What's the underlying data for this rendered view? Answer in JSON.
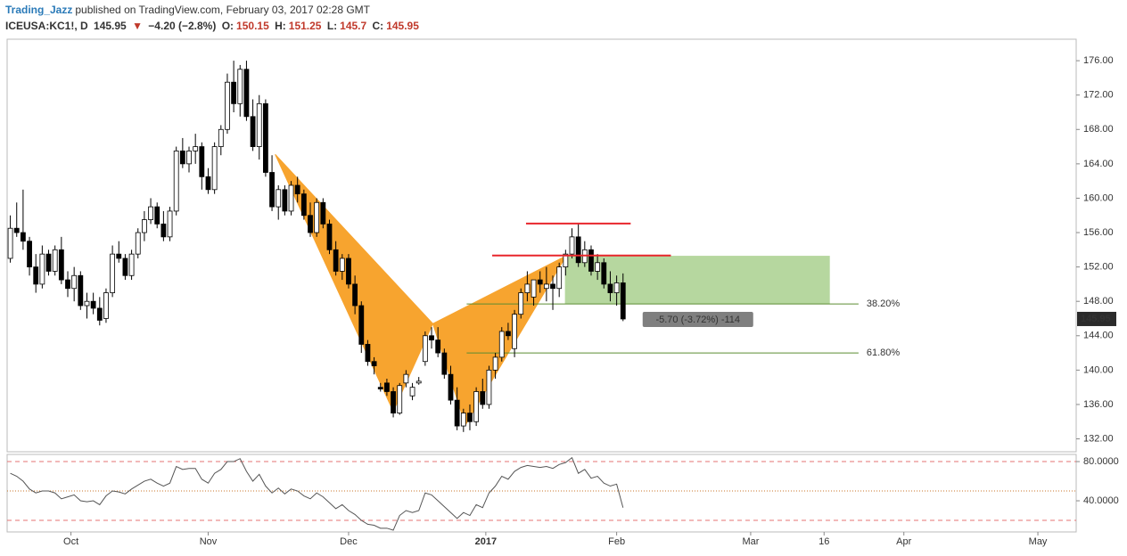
{
  "chart_data": {
    "type": "candlestick",
    "publisher": "Trading_Jazz",
    "published": "published on TradingView.com, February 03, 2017 02:28 GMT",
    "symbol": "ICEUSA:KC1!, D",
    "change_arrow": "▼",
    "change": "−4.20 (−2.8%)",
    "ohlc_labels": [
      "O:",
      "H:",
      "L:",
      "C:"
    ],
    "x": [
      0,
      1,
      2,
      3,
      4,
      5,
      6,
      7,
      8,
      9,
      10,
      11,
      12,
      13,
      14,
      15,
      16,
      17,
      18,
      19,
      20,
      21,
      22,
      23,
      24,
      25,
      26,
      27,
      28,
      29,
      30,
      31,
      32,
      33,
      34,
      35,
      36,
      37,
      38,
      39,
      40,
      41,
      42,
      43,
      44,
      45,
      46,
      47,
      48,
      49,
      50,
      51,
      52,
      53,
      54,
      55,
      56,
      57,
      58,
      59,
      60,
      61,
      62,
      63,
      64,
      65,
      66,
      67,
      68,
      69,
      70,
      71,
      72,
      73,
      74,
      75,
      76,
      77,
      78,
      79,
      80,
      81,
      82,
      83,
      84,
      85,
      86,
      87,
      88,
      89,
      90,
      91,
      92,
      93,
      94,
      95,
      96
    ],
    "open": [
      153.0,
      156.5,
      156.0,
      155.0,
      152.0,
      150.0,
      153.5,
      151.5,
      154.0,
      150.5,
      149.5,
      151.0,
      147.5,
      148.0,
      147.2,
      146.0,
      149.0,
      153.5,
      153.0,
      151.0,
      153.5,
      156.0,
      157.5,
      159.0,
      157.0,
      155.5,
      158.5,
      165.5,
      164.0,
      165.5,
      166.0,
      162.5,
      161.0,
      166.0,
      168.0,
      173.5,
      171.0,
      175.0,
      169.5,
      166.0,
      171.0,
      163.0,
      159.0,
      161.0,
      158.5,
      161.5,
      160.5,
      158.0,
      156.0,
      159.5,
      157.0,
      154.0,
      151.5,
      153.0,
      150.0,
      147.5,
      143.0,
      141.0,
      138.0,
      138.5,
      137.5,
      135.0,
      138.5,
      137.0,
      138.5,
      141.0,
      144.0,
      143.5,
      142.0,
      139.5,
      136.5,
      133.5,
      135.0,
      134.0,
      137.5,
      136.0,
      140.0,
      141.5,
      144.5,
      142.5,
      146.5,
      149.0,
      148.5,
      150.5,
      149.5,
      150.0,
      149.5,
      152.0,
      153.5,
      155.5,
      152.5,
      154.0,
      151.5,
      152.5,
      150.0,
      149.0,
      150.15
    ],
    "high": [
      158.0,
      159.5,
      161.0,
      155.5,
      153.5,
      154.5,
      154.0,
      154.5,
      155.5,
      151.5,
      152.0,
      151.5,
      149.0,
      149.0,
      148.5,
      149.5,
      154.5,
      155.0,
      153.5,
      154.0,
      156.5,
      158.5,
      160.0,
      159.5,
      158.5,
      159.0,
      166.0,
      167.0,
      166.0,
      167.5,
      166.5,
      163.5,
      166.5,
      168.5,
      174.5,
      176.0,
      175.5,
      176.0,
      171.5,
      172.0,
      171.5,
      165.0,
      161.5,
      161.5,
      162.0,
      162.5,
      161.0,
      159.5,
      160.0,
      160.0,
      157.5,
      155.0,
      153.5,
      153.5,
      151.0,
      148.0,
      143.5,
      141.5,
      138.5,
      139.0,
      138.0,
      138.5,
      140.0,
      138.5,
      139.2,
      144.5,
      145.0,
      145.0,
      142.5,
      140.5,
      138.0,
      135.5,
      136.0,
      138.0,
      139.0,
      140.5,
      142.0,
      145.0,
      145.5,
      147.0,
      149.5,
      151.5,
      150.5,
      151.5,
      152.0,
      151.0,
      152.5,
      154.0,
      156.5,
      157.0,
      155.0,
      154.5,
      153.5,
      153.0,
      151.5,
      151.0,
      151.25
    ],
    "low": [
      152.5,
      155.5,
      154.0,
      151.0,
      149.0,
      149.5,
      151.0,
      151.0,
      150.0,
      148.5,
      148.0,
      147.0,
      146.0,
      146.5,
      145.2,
      145.5,
      148.5,
      152.5,
      150.5,
      150.5,
      153.0,
      155.0,
      157.0,
      156.5,
      155.0,
      155.0,
      158.0,
      163.5,
      163.0,
      164.0,
      161.0,
      160.5,
      160.5,
      165.0,
      167.5,
      170.0,
      169.5,
      169.0,
      165.5,
      164.5,
      162.5,
      158.5,
      157.5,
      158.0,
      158.0,
      159.5,
      157.5,
      155.5,
      155.5,
      156.5,
      153.5,
      151.0,
      150.5,
      149.5,
      146.5,
      142.0,
      140.5,
      139.5,
      137.5,
      137.0,
      134.5,
      134.8,
      138.0,
      136.5,
      138.3,
      140.5,
      142.5,
      141.5,
      139.0,
      136.0,
      133.0,
      132.8,
      133.0,
      133.5,
      135.5,
      135.5,
      139.0,
      141.0,
      143.5,
      141.5,
      146.0,
      148.0,
      147.5,
      149.0,
      148.0,
      147.0,
      148.5,
      151.0,
      153.0,
      152.0,
      152.0,
      151.0,
      150.5,
      149.5,
      148.0,
      147.5,
      145.7
    ],
    "close": [
      156.5,
      156.0,
      155.0,
      152.0,
      150.0,
      153.5,
      151.5,
      154.0,
      150.5,
      149.5,
      151.0,
      147.5,
      148.0,
      147.2,
      145.8,
      149.0,
      153.5,
      153.0,
      151.0,
      153.5,
      156.0,
      157.5,
      159.0,
      157.0,
      155.5,
      158.5,
      165.5,
      164.0,
      165.5,
      166.0,
      162.5,
      161.0,
      166.0,
      168.0,
      173.5,
      171.0,
      175.0,
      169.5,
      166.0,
      171.0,
      163.0,
      159.0,
      161.0,
      158.5,
      161.5,
      160.5,
      158.0,
      156.0,
      159.5,
      157.0,
      154.0,
      151.5,
      153.0,
      150.0,
      147.5,
      143.0,
      141.0,
      140.5,
      137.8,
      137.5,
      135.0,
      138.2,
      139.5,
      138.0,
      138.7,
      144.0,
      143.5,
      142.0,
      139.5,
      136.5,
      133.5,
      135.0,
      134.0,
      137.5,
      136.0,
      140.0,
      141.5,
      144.5,
      144.0,
      146.5,
      149.0,
      150.0,
      150.5,
      150.0,
      150.0,
      149.5,
      152.0,
      153.5,
      155.5,
      152.5,
      154.0,
      151.5,
      152.5,
      150.0,
      149.0,
      150.15,
      145.95
    ],
    "up_color": "#ffffff",
    "down_color": "#000000",
    "wick_color": "#000000",
    "xlim": [
      -0.5,
      167
    ],
    "xticks": [
      {
        "value": 9.5,
        "label": "Oct"
      },
      {
        "value": 31,
        "label": "Nov"
      },
      {
        "value": 53,
        "label": "Dec"
      },
      {
        "value": 74.5,
        "label": "2017"
      },
      {
        "value": 95,
        "label": "Feb"
      },
      {
        "value": 116,
        "label": "Mar"
      },
      {
        "value": 127.5,
        "label": "16"
      },
      {
        "value": 140,
        "label": "Apr"
      },
      {
        "value": 161,
        "label": "May"
      }
    ],
    "ylim": [
      130.5,
      178.5
    ],
    "yticks": [
      {
        "value": 132,
        "label": "132.00"
      },
      {
        "value": 136,
        "label": "136.00"
      },
      {
        "value": 140,
        "label": "140.00"
      },
      {
        "value": 144,
        "label": "144.00"
      },
      {
        "value": 148,
        "label": "148.00"
      },
      {
        "value": 152,
        "label": "152.00"
      },
      {
        "value": 156,
        "label": "156.00"
      },
      {
        "value": 160,
        "label": "160.00"
      },
      {
        "value": 164,
        "label": "164.00"
      },
      {
        "value": 168,
        "label": "168.00"
      },
      {
        "value": 172,
        "label": "172.00"
      },
      {
        "value": 176,
        "label": "176.00"
      }
    ],
    "pattern": {
      "color": "#f7a42f",
      "triangles": [
        [
          {
            "x": 41.5,
            "y": 165.1
          },
          {
            "x": 60,
            "y": 135.2
          },
          {
            "x": 66.2,
            "y": 145.4
          }
        ],
        [
          {
            "x": 66.2,
            "y": 145.4
          },
          {
            "x": 71.3,
            "y": 133.6
          },
          {
            "x": 87.1,
            "y": 153.3
          }
        ]
      ]
    },
    "levels": [
      {
        "y": 157.05,
        "x": [
          80.8,
          97.2
        ],
        "color": "#e8262c"
      },
      {
        "y": 153.33,
        "x": [
          75.5,
          103.5
        ],
        "color": "#e8262c"
      }
    ],
    "zone": {
      "x": [
        86.9,
        128.4
      ],
      "y": [
        147.7,
        153.3
      ],
      "color": "#a9d08e"
    },
    "fib_color": "#5b8c32",
    "fib": [
      {
        "label": "38.20%",
        "y": 147.7,
        "x": [
          71.5,
          132.9
        ]
      },
      {
        "label": "61.80%",
        "y": 142.0,
        "x": [
          71.5,
          132.9
        ]
      }
    ],
    "measure_label": "-5.70 (-3.72%) -114",
    "rsi": {
      "color": "#555555",
      "values": [
        68,
        65,
        60,
        52,
        48,
        50,
        50,
        48,
        42,
        44,
        46,
        40,
        39,
        40,
        36,
        45,
        50,
        49,
        47,
        52,
        56,
        60,
        62,
        58,
        55,
        58,
        75,
        72,
        73,
        73,
        62,
        58,
        68,
        72,
        80,
        80,
        83,
        70,
        60,
        67,
        55,
        48,
        53,
        47,
        52,
        50,
        45,
        42,
        48,
        44,
        38,
        32,
        36,
        30,
        26,
        20,
        16,
        15,
        12,
        12,
        10,
        25,
        30,
        28,
        30,
        48,
        46,
        40,
        34,
        28,
        22,
        28,
        25,
        36,
        33,
        48,
        55,
        65,
        62,
        70,
        74,
        76,
        75,
        74,
        75,
        73,
        77,
        79,
        84,
        68,
        72,
        63,
        65,
        58,
        55,
        57,
        33
      ],
      "ylim": [
        8.2,
        87.3
      ],
      "yticks": [
        {
          "value": 80,
          "label": "80.0000"
        },
        {
          "value": 40,
          "label": "40.0000"
        }
      ],
      "levels": [
        {
          "value": 80,
          "color": "#e57373",
          "style": "dashed"
        },
        {
          "value": 50,
          "color": "#c8762a",
          "style": "dotted"
        },
        {
          "value": 20,
          "color": "#e57373",
          "style": "dashed"
        }
      ]
    }
  }
}
